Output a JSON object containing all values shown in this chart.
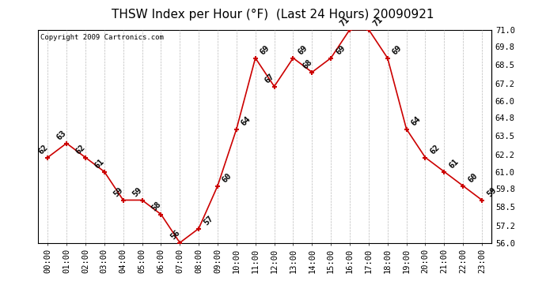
{
  "title": "THSW Index per Hour (°F)  (Last 24 Hours) 20090921",
  "copyright": "Copyright 2009 Cartronics.com",
  "hours": [
    "00:00",
    "01:00",
    "02:00",
    "03:00",
    "04:00",
    "05:00",
    "06:00",
    "07:00",
    "08:00",
    "09:00",
    "10:00",
    "11:00",
    "12:00",
    "13:00",
    "14:00",
    "15:00",
    "16:00",
    "17:00",
    "18:00",
    "19:00",
    "20:00",
    "21:00",
    "22:00",
    "23:00"
  ],
  "values": [
    62,
    63,
    62,
    61,
    59,
    59,
    58,
    56,
    57,
    60,
    64,
    69,
    67,
    69,
    68,
    69,
    71,
    71,
    69,
    64,
    62,
    61,
    60,
    59
  ],
  "ylim": [
    56.0,
    71.0
  ],
  "yticks": [
    56.0,
    57.2,
    58.5,
    59.8,
    61.0,
    62.2,
    63.5,
    64.8,
    66.0,
    67.2,
    68.5,
    69.8,
    71.0
  ],
  "line_color": "#cc0000",
  "marker_color": "#cc0000",
  "bg_color": "#ffffff",
  "grid_color": "#bbbbbb",
  "title_fontsize": 11,
  "label_fontsize": 7.5,
  "annotation_fontsize": 7.5,
  "copyright_fontsize": 6.5
}
